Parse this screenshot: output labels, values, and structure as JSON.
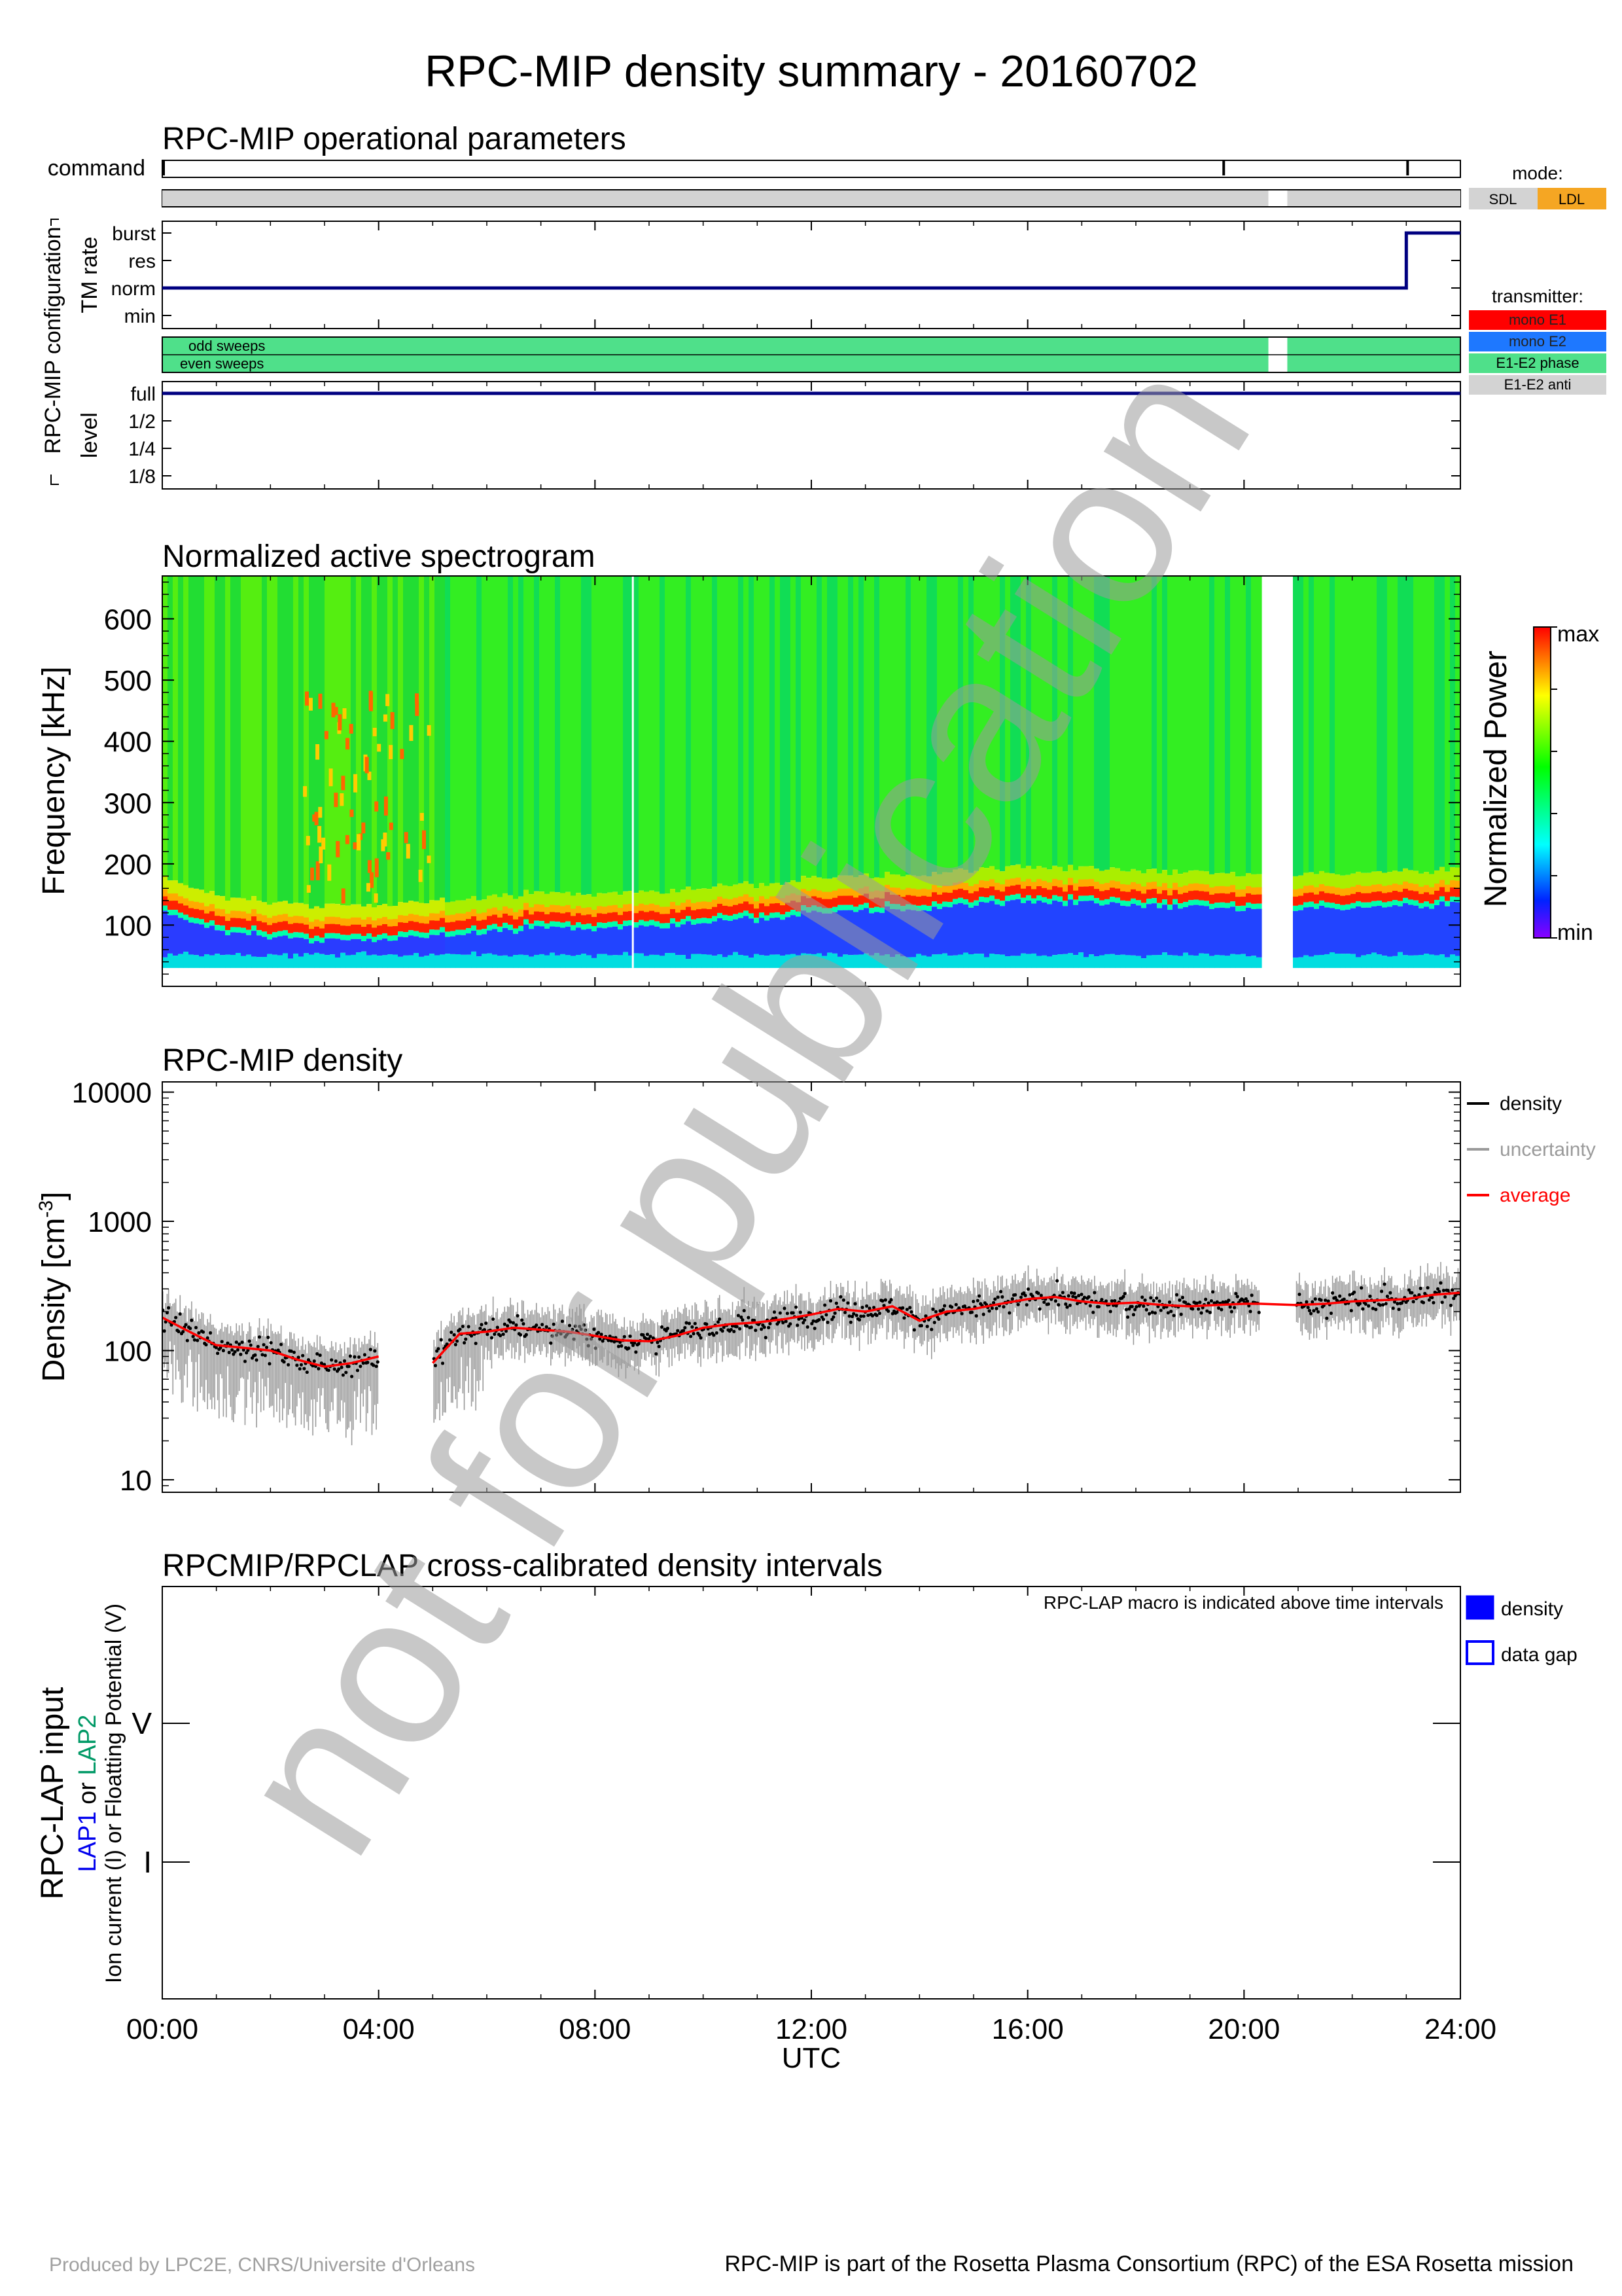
{
  "title": "RPC-MIP density summary - 20160702",
  "watermark": "not for publication",
  "footer": {
    "left": "Produced by LPC2E, CNRS/Universite d'Orleans",
    "right": "RPC-MIP is part of the Rosetta Plasma Consortium (RPC) of the ESA Rosetta mission"
  },
  "time_axis": {
    "ticks": [
      "00:00",
      "04:00",
      "08:00",
      "12:00",
      "16:00",
      "20:00",
      "24:00"
    ],
    "label": "UTC"
  },
  "operational": {
    "title": "RPC-MIP operational parameters",
    "command_label": "command",
    "config_label": "RPC-MIP configuration",
    "tm_rate_label": "TM rate",
    "level_label": "level",
    "tm_rate_levels": [
      "burst",
      "res",
      "norm",
      "min"
    ],
    "level_levels": [
      "full",
      "1/2",
      "1/4",
      "1/8"
    ],
    "sweep_labels": [
      "odd sweeps",
      "even sweeps"
    ],
    "mode_legend": {
      "title": "mode:",
      "items": [
        "SDL",
        "LDL"
      ],
      "colors": [
        "#d3d3d3",
        "#f5a623"
      ]
    },
    "transmitter_legend": {
      "title": "transmitter:",
      "items": [
        "mono E1",
        "mono E2",
        "E1-E2 phase",
        "E1-E2 anti"
      ],
      "colors": [
        "#ff0000",
        "#1e78ff",
        "#4fe08a",
        "#d3d3d3"
      ]
    }
  },
  "spectrogram": {
    "title": "Normalized active spectrogram",
    "ylabel": "Frequency [kHz]",
    "yticks": [
      "100",
      "200",
      "300",
      "400",
      "500",
      "600"
    ],
    "colorbar_label": "Normalized Power",
    "colorbar_max": "max",
    "colorbar_min": "min"
  },
  "density_panel": {
    "title": "RPC-MIP density",
    "ylabel": "Density [cm",
    "ylabel_sup": "-3",
    "ylabel_end": "]",
    "yticks": [
      "10000",
      "1000",
      "100",
      "10"
    ],
    "legend": [
      "density",
      "uncertainty",
      "average"
    ],
    "legend_colors": [
      "#000000",
      "#9a9a9a",
      "#ff0000"
    ]
  },
  "lap_panel": {
    "title": "RPCMIP/RPCLAP cross-calibrated density intervals",
    "note": "RPC-LAP macro is indicated above time intervals",
    "ylabel": "RPC-LAP input",
    "ylabel2_part1": "LAP1",
    "ylabel2_part2": " or ",
    "ylabel2_part3": "LAP2",
    "ylabel3": "Ion current (I) or Floatting Potential (V)",
    "yticks": [
      "V",
      "I"
    ],
    "legend": [
      "density",
      "data gap"
    ]
  },
  "chart_data": [
    {
      "type": "line",
      "title": "RPC-MIP operational parameters",
      "x_unit": "hours UTC",
      "xlim": [
        0,
        24
      ],
      "series": [
        {
          "name": "TM rate",
          "x": [
            0,
            23.0,
            23.0,
            24
          ],
          "y": [
            "norm",
            "norm",
            "burst",
            "burst"
          ]
        },
        {
          "name": "level",
          "x": [
            0,
            24
          ],
          "y": [
            "full",
            "full"
          ]
        }
      ],
      "command_ticks_hours": [
        0.0,
        19.6,
        23.0
      ],
      "mode": [
        {
          "from": 0,
          "to": 20.45,
          "mode": "SDL"
        },
        {
          "from": 20.8,
          "to": 24,
          "mode": "SDL"
        }
      ],
      "transmitter": [
        {
          "from": 0,
          "to": 20.45,
          "value": "E1-E2 phase"
        },
        {
          "from": 20.8,
          "to": 24,
          "value": "E1-E2 phase"
        }
      ]
    },
    {
      "type": "heatmap",
      "title": "Normalized active spectrogram",
      "xlabel": "UTC",
      "ylabel": "Frequency [kHz]",
      "xlim": [
        0,
        24
      ],
      "ylim": [
        0,
        670
      ],
      "data_range_khz": [
        30,
        670
      ],
      "gaps_hours": [
        [
          20.3,
          20.95
        ]
      ],
      "colorbar": [
        "min",
        "max"
      ],
      "plasma_line_khz": {
        "hours": [
          0,
          1,
          2,
          3,
          4,
          5,
          6,
          7,
          8,
          9,
          10,
          11,
          12,
          13,
          14,
          15,
          16,
          17,
          18,
          19,
          20,
          21,
          22,
          23,
          24
        ],
        "values": [
          135,
          105,
          95,
          90,
          88,
          95,
          105,
          110,
          108,
          112,
          118,
          125,
          132,
          138,
          140,
          148,
          152,
          150,
          145,
          142,
          140,
          140,
          142,
          145,
          150
        ]
      }
    },
    {
      "type": "line",
      "title": "RPC-MIP density",
      "xlabel": "UTC",
      "ylabel": "Density [cm-3]",
      "xlim": [
        0,
        24
      ],
      "ylim": [
        8,
        12000
      ],
      "yscale": "log",
      "grid": false,
      "legend_position": "right",
      "series": [
        {
          "name": "average",
          "x": [
            0,
            0.5,
            1,
            1.5,
            2,
            2.5,
            3,
            3.5,
            4,
            4.5,
            5,
            5.5,
            6,
            6.5,
            7,
            7.5,
            8,
            8.5,
            9,
            9.5,
            10,
            10.5,
            11,
            11.5,
            12,
            12.5,
            13,
            13.5,
            14,
            14.5,
            15,
            15.5,
            16,
            16.5,
            17,
            17.5,
            18,
            18.5,
            19,
            19.5,
            20,
            20.3,
            20.95,
            21.5,
            22,
            22.5,
            23,
            23.5,
            24
          ],
          "y": [
            180,
            140,
            110,
            105,
            100,
            85,
            75,
            80,
            90,
            null,
            80,
            135,
            140,
            150,
            145,
            140,
            130,
            120,
            118,
            130,
            150,
            160,
            165,
            175,
            190,
            210,
            200,
            220,
            170,
            200,
            210,
            230,
            250,
            260,
            240,
            230,
            235,
            225,
            220,
            225,
            230,
            230,
            225,
            230,
            240,
            245,
            250,
            270,
            280
          ]
        }
      ],
      "density_spread": "roughly +/- 30% scatter around the average, uncertainty bars extending down to ~20-40 cm-3 before 06:00",
      "gaps_hours": [
        [
          4.4,
          4.7
        ],
        [
          20.3,
          20.95
        ]
      ]
    },
    {
      "type": "bar",
      "title": "RPCMIP/RPCLAP cross-calibrated density intervals",
      "categories": [
        "V",
        "I"
      ],
      "intervals": [],
      "legend": [
        "density",
        "data gap"
      ]
    }
  ]
}
